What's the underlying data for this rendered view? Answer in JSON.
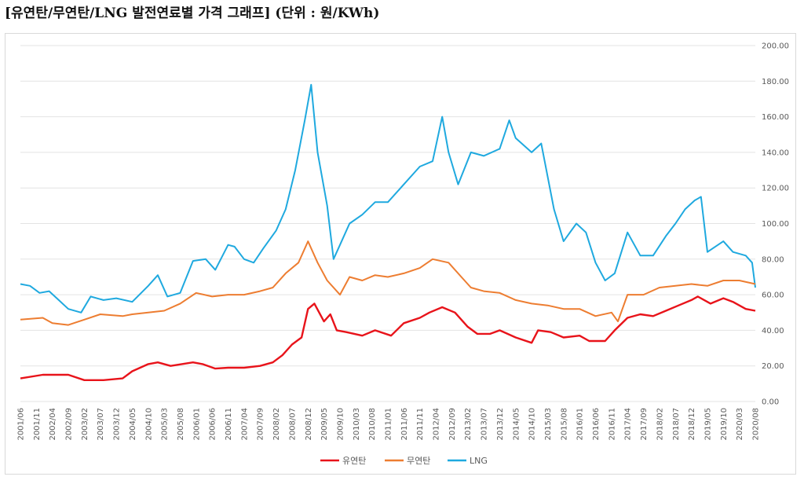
{
  "title": "[유연탄/무연탄/LNG 발전연료별 가격 그래프] (단위 : 원/KWh)",
  "chart_data": {
    "type": "line",
    "title": "[유연탄/무연탄/LNG 발전연료별 가격 그래프] (단위 : 원/KWh)",
    "unit": "원/KWh",
    "ylim": [
      0,
      200
    ],
    "y_ticks": [
      "0.00",
      "20.00",
      "40.00",
      "60.00",
      "80.00",
      "100.00",
      "120.00",
      "140.00",
      "160.00",
      "180.00",
      "200.00"
    ],
    "x_ticks": [
      "2001/06",
      "2001/11",
      "2002/04",
      "2002/09",
      "2003/02",
      "2003/07",
      "2003/12",
      "2004/05",
      "2004/10",
      "2005/03",
      "2005/08",
      "2006/01",
      "2006/06",
      "2006/11",
      "2007/04",
      "2007/09",
      "2008/02",
      "2008/07",
      "2008/12",
      "2009/05",
      "2009/10",
      "2010/03",
      "2010/08",
      "2011/01",
      "2011/06",
      "2011/11",
      "2012/04",
      "2012/09",
      "2013/02",
      "2013/07",
      "2013/12",
      "2014/05",
      "2014/10",
      "2015/03",
      "2015/08",
      "2016/01",
      "2016/06",
      "2016/11",
      "2017/04",
      "2017/09",
      "2018/02",
      "2018/07",
      "2018/12",
      "2019/05",
      "2019/10",
      "2020/03",
      "2020/08"
    ],
    "x_start": "2001/06",
    "x_end": "2020/08",
    "grid": true,
    "legend_position": "bottom",
    "series": [
      {
        "name": "유연탄",
        "color": "#e8131a",
        "points": [
          [
            "2001/06",
            13
          ],
          [
            "2002/01",
            15
          ],
          [
            "2002/09",
            15
          ],
          [
            "2003/02",
            12
          ],
          [
            "2003/08",
            12
          ],
          [
            "2004/02",
            13
          ],
          [
            "2004/05",
            17
          ],
          [
            "2004/10",
            21
          ],
          [
            "2005/01",
            22
          ],
          [
            "2005/05",
            20
          ],
          [
            "2005/12",
            22
          ],
          [
            "2006/03",
            21
          ],
          [
            "2006/07",
            18.5
          ],
          [
            "2006/11",
            19
          ],
          [
            "2007/04",
            19
          ],
          [
            "2007/09",
            20
          ],
          [
            "2008/01",
            22
          ],
          [
            "2008/04",
            26
          ],
          [
            "2008/07",
            32
          ],
          [
            "2008/10",
            36
          ],
          [
            "2008/12",
            52
          ],
          [
            "2009/02",
            55
          ],
          [
            "2009/05",
            45
          ],
          [
            "2009/07",
            49
          ],
          [
            "2009/09",
            40
          ],
          [
            "2009/12",
            39
          ],
          [
            "2010/05",
            37
          ],
          [
            "2010/09",
            40
          ],
          [
            "2011/02",
            37
          ],
          [
            "2011/06",
            44
          ],
          [
            "2011/11",
            47
          ],
          [
            "2012/02",
            50
          ],
          [
            "2012/06",
            53
          ],
          [
            "2012/10",
            50
          ],
          [
            "2013/02",
            42
          ],
          [
            "2013/05",
            38
          ],
          [
            "2013/09",
            38
          ],
          [
            "2013/12",
            40
          ],
          [
            "2014/05",
            36
          ],
          [
            "2014/10",
            33
          ],
          [
            "2014/12",
            40
          ],
          [
            "2015/04",
            39
          ],
          [
            "2015/08",
            36
          ],
          [
            "2016/01",
            37
          ],
          [
            "2016/04",
            34
          ],
          [
            "2016/09",
            34
          ],
          [
            "2016/12",
            40
          ],
          [
            "2017/04",
            47
          ],
          [
            "2017/08",
            49
          ],
          [
            "2017/12",
            48
          ],
          [
            "2018/04",
            51
          ],
          [
            "2018/08",
            54
          ],
          [
            "2018/12",
            57
          ],
          [
            "2019/02",
            59
          ],
          [
            "2019/06",
            55
          ],
          [
            "2019/10",
            58
          ],
          [
            "2020/01",
            56
          ],
          [
            "2020/05",
            52
          ],
          [
            "2020/08",
            51
          ]
        ]
      },
      {
        "name": "무연탄",
        "color": "#ed7d31",
        "points": [
          [
            "2001/06",
            46
          ],
          [
            "2002/01",
            47
          ],
          [
            "2002/04",
            44
          ],
          [
            "2002/09",
            43
          ],
          [
            "2003/02",
            46
          ],
          [
            "2003/07",
            49
          ],
          [
            "2004/02",
            48
          ],
          [
            "2004/05",
            49
          ],
          [
            "2004/10",
            50
          ],
          [
            "2005/03",
            51
          ],
          [
            "2005/08",
            55
          ],
          [
            "2006/01",
            61
          ],
          [
            "2006/06",
            59
          ],
          [
            "2006/11",
            60
          ],
          [
            "2007/04",
            60
          ],
          [
            "2007/09",
            62
          ],
          [
            "2008/01",
            64
          ],
          [
            "2008/05",
            72
          ],
          [
            "2008/09",
            78
          ],
          [
            "2008/12",
            90
          ],
          [
            "2009/03",
            78
          ],
          [
            "2009/06",
            68
          ],
          [
            "2009/10",
            60
          ],
          [
            "2010/01",
            70
          ],
          [
            "2010/05",
            68
          ],
          [
            "2010/09",
            71
          ],
          [
            "2011/01",
            70
          ],
          [
            "2011/06",
            72
          ],
          [
            "2011/11",
            75
          ],
          [
            "2012/03",
            80
          ],
          [
            "2012/08",
            78
          ],
          [
            "2012/12",
            70
          ],
          [
            "2013/03",
            64
          ],
          [
            "2013/07",
            62
          ],
          [
            "2013/12",
            61
          ],
          [
            "2014/05",
            57
          ],
          [
            "2014/10",
            55
          ],
          [
            "2015/03",
            54
          ],
          [
            "2015/08",
            52
          ],
          [
            "2016/01",
            52
          ],
          [
            "2016/06",
            48
          ],
          [
            "2016/11",
            50
          ],
          [
            "2017/01",
            45
          ],
          [
            "2017/04",
            60
          ],
          [
            "2017/09",
            60
          ],
          [
            "2018/02",
            64
          ],
          [
            "2018/07",
            65
          ],
          [
            "2018/12",
            66
          ],
          [
            "2019/05",
            65
          ],
          [
            "2019/10",
            68
          ],
          [
            "2020/03",
            68
          ],
          [
            "2020/08",
            66
          ]
        ]
      },
      {
        "name": "LNG",
        "color": "#1fa9df",
        "points": [
          [
            "2001/06",
            66
          ],
          [
            "2001/09",
            65
          ],
          [
            "2001/12",
            61
          ],
          [
            "2002/03",
            62
          ],
          [
            "2002/06",
            57
          ],
          [
            "2002/09",
            52
          ],
          [
            "2003/01",
            50
          ],
          [
            "2003/04",
            59
          ],
          [
            "2003/08",
            57
          ],
          [
            "2003/12",
            58
          ],
          [
            "2004/05",
            56
          ],
          [
            "2004/10",
            65
          ],
          [
            "2005/01",
            71
          ],
          [
            "2005/04",
            59
          ],
          [
            "2005/08",
            61
          ],
          [
            "2005/12",
            79
          ],
          [
            "2006/04",
            80
          ],
          [
            "2006/07",
            74
          ],
          [
            "2006/11",
            88
          ],
          [
            "2007/01",
            87
          ],
          [
            "2007/04",
            80
          ],
          [
            "2007/07",
            78
          ],
          [
            "2007/10",
            86
          ],
          [
            "2008/02",
            96
          ],
          [
            "2008/05",
            108
          ],
          [
            "2008/08",
            130
          ],
          [
            "2008/11",
            158
          ],
          [
            "2009/01",
            178
          ],
          [
            "2009/03",
            140
          ],
          [
            "2009/06",
            110
          ],
          [
            "2009/08",
            80
          ],
          [
            "2009/10",
            88
          ],
          [
            "2010/01",
            100
          ],
          [
            "2010/05",
            105
          ],
          [
            "2010/09",
            112
          ],
          [
            "2011/01",
            112
          ],
          [
            "2011/06",
            122
          ],
          [
            "2011/11",
            132
          ],
          [
            "2012/03",
            135
          ],
          [
            "2012/06",
            160
          ],
          [
            "2012/08",
            140
          ],
          [
            "2012/11",
            122
          ],
          [
            "2013/03",
            140
          ],
          [
            "2013/07",
            138
          ],
          [
            "2013/12",
            142
          ],
          [
            "2014/03",
            158
          ],
          [
            "2014/05",
            148
          ],
          [
            "2014/10",
            140
          ],
          [
            "2015/01",
            145
          ],
          [
            "2015/05",
            108
          ],
          [
            "2015/08",
            90
          ],
          [
            "2015/12",
            100
          ],
          [
            "2016/03",
            95
          ],
          [
            "2016/06",
            78
          ],
          [
            "2016/09",
            68
          ],
          [
            "2016/12",
            72
          ],
          [
            "2017/04",
            95
          ],
          [
            "2017/08",
            82
          ],
          [
            "2017/12",
            82
          ],
          [
            "2018/04",
            93
          ],
          [
            "2018/07",
            100
          ],
          [
            "2018/10",
            108
          ],
          [
            "2019/01",
            113
          ],
          [
            "2019/03",
            115
          ],
          [
            "2019/05",
            84
          ],
          [
            "2019/10",
            90
          ],
          [
            "2020/01",
            84
          ],
          [
            "2020/05",
            82
          ],
          [
            "2020/07",
            78
          ],
          [
            "2020/08",
            64
          ]
        ]
      }
    ]
  }
}
